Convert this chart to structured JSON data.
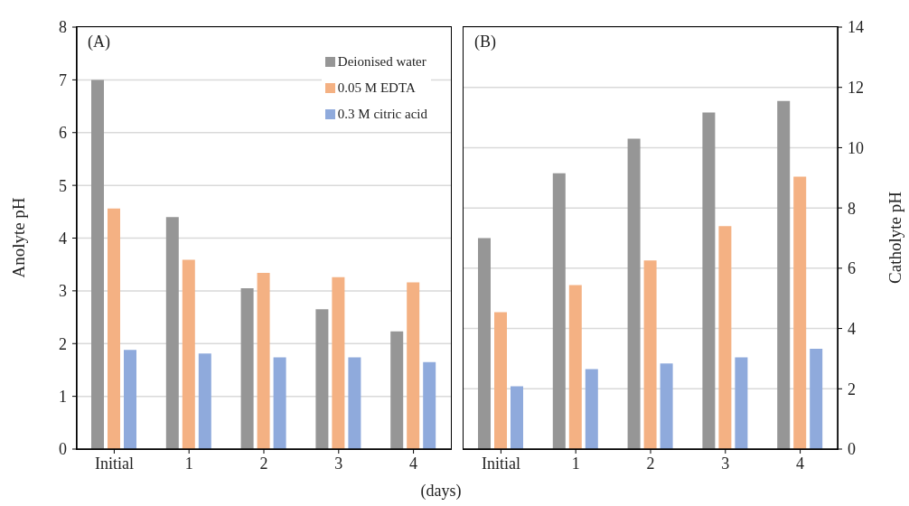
{
  "chart_data": [
    {
      "type": "bar",
      "title": "(A)",
      "ylabel": "Anolyte pH",
      "xlabel": "(days)",
      "categories": [
        "Initial",
        "1",
        "2",
        "3",
        "4"
      ],
      "series": [
        {
          "name": "Deionised water",
          "color": "#969696",
          "values": [
            7.0,
            4.4,
            3.05,
            2.65,
            2.23
          ]
        },
        {
          "name": "0.05 M EDTA",
          "color": "#f4b183",
          "values": [
            4.56,
            3.59,
            3.34,
            3.26,
            3.16
          ]
        },
        {
          "name": "0.3 M citric acid",
          "color": "#8faadc",
          "values": [
            1.88,
            1.81,
            1.74,
            1.74,
            1.65
          ]
        }
      ],
      "ylim": [
        0,
        8
      ],
      "yticks": [
        0,
        1,
        2,
        3,
        4,
        5,
        6,
        7,
        8
      ],
      "grid": "y",
      "legend": "top right"
    },
    {
      "type": "bar",
      "title": "(B)",
      "y2label": "Catholyte pH",
      "categories": [
        "Initial",
        "1",
        "2",
        "3",
        "4"
      ],
      "series": [
        {
          "color": "#969696",
          "values": [
            7.0,
            9.15,
            10.3,
            11.17,
            11.55
          ],
          "axis": "y2"
        },
        {
          "color": "#f4b183",
          "values": [
            4.54,
            5.44,
            6.26,
            7.4,
            9.04
          ],
          "axis": "y2"
        },
        {
          "color": "#8faadc",
          "values": [
            2.08,
            2.65,
            2.84,
            3.04,
            3.33
          ],
          "axis": "y2"
        }
      ],
      "y2lim": [
        0,
        14
      ],
      "y2ticks": [
        0,
        2,
        4,
        6,
        8,
        10,
        12,
        14
      ],
      "grid": "y"
    }
  ]
}
